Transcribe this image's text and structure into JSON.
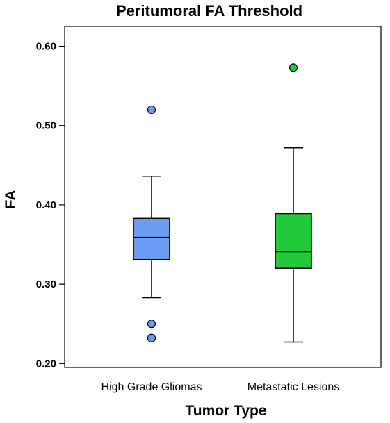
{
  "chart_data": {
    "type": "boxplot",
    "title": "Peritumoral FA Threshold",
    "xlabel": "Tumor Type",
    "ylabel": "FA",
    "ylim": [
      0.195,
      0.625
    ],
    "yticks": [
      0.2,
      0.3,
      0.4,
      0.5,
      0.6
    ],
    "ytick_labels": [
      "0.20",
      "0.30",
      "0.40",
      "0.50",
      "0.60"
    ],
    "grid": false,
    "categories": [
      "High Grade Gliomas",
      "Metastatic Lesions"
    ],
    "series": [
      {
        "category": "High Grade Gliomas",
        "whisker_low": 0.283,
        "q1": 0.331,
        "median": 0.359,
        "q3": 0.383,
        "whisker_high": 0.436,
        "outliers": [
          0.52,
          0.25,
          0.232
        ],
        "color": "#6b9bf2"
      },
      {
        "category": "Metastatic Lesions",
        "whisker_low": 0.227,
        "q1": 0.32,
        "median": 0.341,
        "q3": 0.389,
        "whisker_high": 0.472,
        "outliers": [
          0.573
        ],
        "color": "#22c93a"
      }
    ]
  }
}
